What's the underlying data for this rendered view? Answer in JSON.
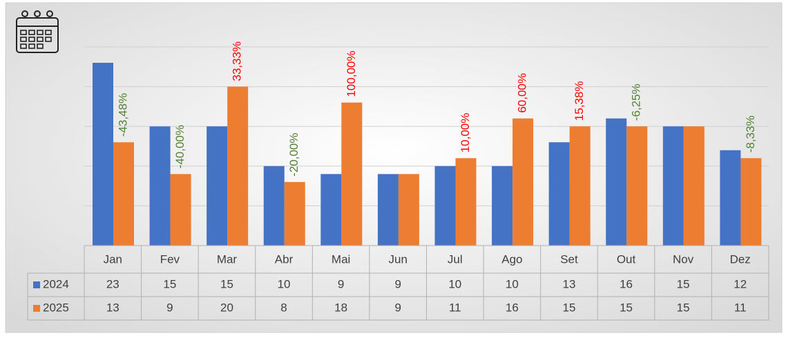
{
  "chart_data": {
    "type": "bar",
    "categories": [
      "Jan",
      "Fev",
      "Mar",
      "Abr",
      "Mai",
      "Jun",
      "Jul",
      "Ago",
      "Set",
      "Out",
      "Nov",
      "Dez"
    ],
    "series": [
      {
        "name": "2024",
        "color": "#4472c4",
        "values": [
          23,
          15,
          15,
          10,
          9,
          9,
          10,
          10,
          13,
          16,
          15,
          12
        ]
      },
      {
        "name": "2025",
        "color": "#ed7d31",
        "values": [
          13,
          9,
          20,
          8,
          18,
          9,
          11,
          16,
          15,
          15,
          15,
          11
        ]
      }
    ],
    "change": {
      "values": [
        -43.48,
        -40,
        33.33,
        -20,
        100,
        null,
        10,
        60,
        15.38,
        -6.25,
        null,
        -8.33
      ],
      "value_labels": [
        "-43,48%",
        "-40,00%",
        "33,33%",
        "-20,00%",
        "100,00%",
        null,
        "10,00%",
        "60,00%",
        "15,38%",
        "-6,25%",
        null,
        "-8,33%"
      ],
      "positive_color": "#ff0000",
      "negative_color": "#548235"
    },
    "ylim": [
      0,
      25
    ],
    "yticks": [
      0,
      5,
      10,
      15,
      20,
      25
    ],
    "grid": true,
    "data_table": true
  }
}
